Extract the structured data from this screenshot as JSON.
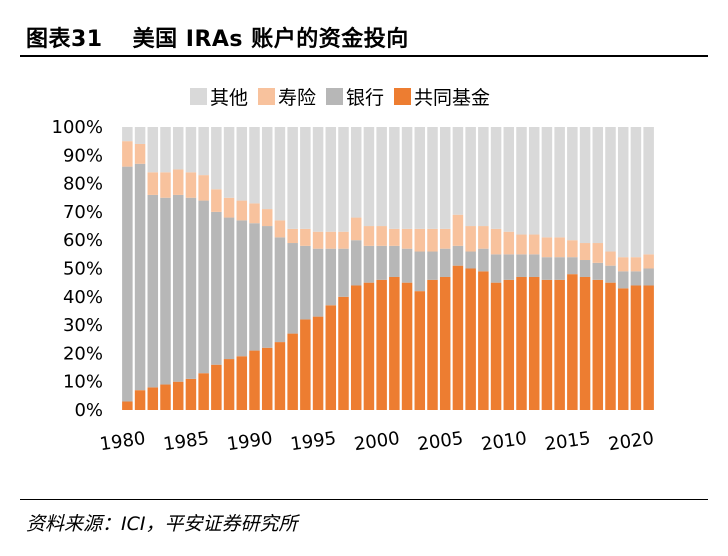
{
  "figure": {
    "label": "图表31",
    "title": "美国 IRAs 账户的资金投向",
    "source": "资料来源：ICI，平安证券研究所"
  },
  "chart_data": {
    "type": "bar",
    "stacked": true,
    "title": "美国 IRAs 账户的资金投向",
    "xlabel": "",
    "ylabel": "",
    "ylim": [
      0,
      100
    ],
    "y_ticks": [
      0,
      10,
      20,
      30,
      40,
      50,
      60,
      70,
      80,
      90,
      100
    ],
    "y_tick_labels": [
      "0%",
      "10%",
      "20%",
      "30%",
      "40%",
      "50%",
      "60%",
      "70%",
      "80%",
      "90%",
      "100%"
    ],
    "x_tick_labels": [
      "1980",
      "1985",
      "1990",
      "1995",
      "2000",
      "2005",
      "2010",
      "2015",
      "2020"
    ],
    "legend_position": "top",
    "legend": [
      "其他",
      "寿险",
      "银行",
      "共同基金"
    ],
    "colors": {
      "其他": "#d9d9d9",
      "寿险": "#f8c29d",
      "银行": "#b7b7b7",
      "共同基金": "#ed7d31"
    },
    "categories": [
      "1980",
      "1981",
      "1982",
      "1983",
      "1984",
      "1985",
      "1986",
      "1987",
      "1988",
      "1989",
      "1990",
      "1991",
      "1992",
      "1993",
      "1994",
      "1995",
      "1996",
      "1997",
      "1998",
      "1999",
      "2000",
      "2001",
      "2002",
      "2003",
      "2004",
      "2005",
      "2006",
      "2007",
      "2008",
      "2009",
      "2010",
      "2011",
      "2012",
      "2013",
      "2014",
      "2015",
      "2016",
      "2017",
      "2018",
      "2019",
      "2020",
      "2021"
    ],
    "series": [
      {
        "name": "共同基金",
        "values": [
          3,
          7,
          8,
          9,
          10,
          11,
          13,
          16,
          18,
          19,
          21,
          22,
          24,
          27,
          32,
          33,
          37,
          40,
          44,
          45,
          46,
          47,
          45,
          42,
          46,
          47,
          51,
          50,
          49,
          45,
          46,
          47,
          47,
          46,
          46,
          48,
          47,
          46,
          45,
          43,
          44,
          44
        ]
      },
      {
        "name": "银行",
        "values": [
          83,
          80,
          68,
          66,
          66,
          64,
          61,
          54,
          50,
          48,
          45,
          43,
          37,
          32,
          26,
          24,
          20,
          17,
          16,
          13,
          12,
          11,
          12,
          14,
          10,
          10,
          7,
          6,
          8,
          10,
          9,
          8,
          8,
          8,
          8,
          6,
          6,
          6,
          6,
          6,
          5,
          6
        ]
      },
      {
        "name": "寿险",
        "values": [
          9,
          7,
          8,
          9,
          9,
          9,
          9,
          8,
          7,
          7,
          7,
          6,
          6,
          5,
          6,
          6,
          6,
          6,
          8,
          7,
          7,
          6,
          7,
          8,
          8,
          7,
          11,
          9,
          8,
          9,
          8,
          7,
          7,
          7,
          7,
          6,
          6,
          7,
          5,
          5,
          5,
          5
        ]
      },
      {
        "name": "其他",
        "values": [
          5,
          6,
          16,
          16,
          15,
          16,
          17,
          22,
          25,
          26,
          27,
          29,
          33,
          36,
          36,
          37,
          37,
          37,
          32,
          35,
          35,
          36,
          36,
          36,
          36,
          36,
          31,
          35,
          35,
          36,
          37,
          38,
          38,
          39,
          39,
          40,
          41,
          41,
          44,
          46,
          46,
          45
        ]
      }
    ]
  }
}
